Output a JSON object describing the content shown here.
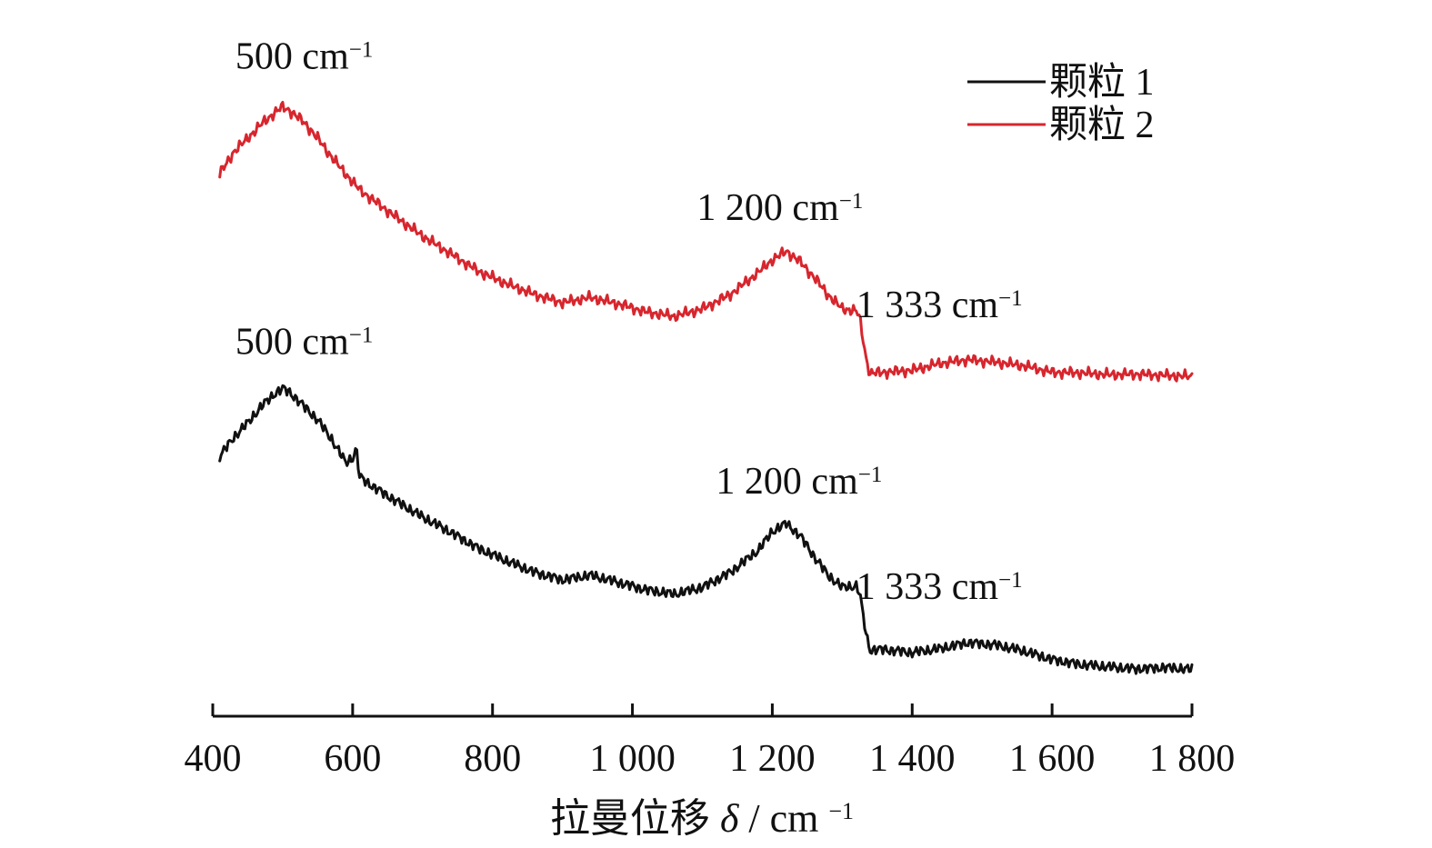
{
  "chart_data": {
    "type": "line",
    "xlabel_main": "拉曼位移",
    "xlabel_symbol": "δ",
    "xlabel_unit": " / cm",
    "xlabel_unit_exp": "−1",
    "xlim": [
      400,
      1800
    ],
    "x_ticks": [
      {
        "value": 400,
        "label": "400"
      },
      {
        "value": 600,
        "label": "600"
      },
      {
        "value": 800,
        "label": "800"
      },
      {
        "value": 1000,
        "label": "1 000"
      },
      {
        "value": 1200,
        "label": "1 200"
      },
      {
        "value": 1400,
        "label": "1 400"
      },
      {
        "value": 1600,
        "label": "1 600"
      },
      {
        "value": 1800,
        "label": "1 800"
      }
    ],
    "ylabel": "",
    "ylim": [
      0,
      100
    ],
    "grid": false,
    "legend": {
      "position": "top-right",
      "entries": [
        {
          "label": "颗粒 1",
          "color": "#111111"
        },
        {
          "label": "颗粒 2",
          "color": "#d7262e"
        }
      ]
    },
    "series": [
      {
        "name": "颗粒 1",
        "color": "#111111",
        "x": [
          410,
          430,
          450,
          470,
          490,
          500,
          510,
          530,
          550,
          570,
          590,
          600,
          605,
          610,
          630,
          660,
          700,
          740,
          780,
          820,
          860,
          900,
          940,
          980,
          1020,
          1060,
          1100,
          1140,
          1180,
          1200,
          1220,
          1240,
          1260,
          1280,
          1300,
          1320,
          1325,
          1330,
          1335,
          1340,
          1360,
          1400,
          1440,
          1480,
          1520,
          1560,
          1600,
          1640,
          1680,
          1720,
          1760,
          1800
        ],
        "values": [
          34.5,
          37.5,
          39.8,
          42.5,
          44.6,
          45.3,
          44.7,
          42.5,
          40.3,
          37.2,
          33.5,
          34.2,
          35.8,
          31.2,
          29.6,
          27.5,
          24.8,
          22.4,
          19.8,
          17.8,
          16.0,
          14.8,
          15.5,
          14.4,
          13.2,
          12.5,
          13.6,
          16.0,
          19.5,
          22.5,
          23.8,
          21.8,
          18.5,
          15.5,
          13.6,
          13.8,
          12.6,
          9.0,
          5.6,
          3.6,
          3.7,
          3.2,
          3.8,
          4.8,
          4.4,
          3.4,
          2.1,
          1.3,
          0.9,
          0.6,
          0.8,
          0.5
        ]
      },
      {
        "name": "颗粒 2",
        "color": "#d7262e",
        "x": [
          410,
          430,
          450,
          470,
          490,
          500,
          510,
          530,
          550,
          570,
          590,
          610,
          630,
          660,
          700,
          740,
          780,
          820,
          860,
          900,
          940,
          980,
          1020,
          1060,
          1100,
          1140,
          1180,
          1200,
          1220,
          1240,
          1260,
          1280,
          1300,
          1320,
          1325,
          1330,
          1335,
          1340,
          1360,
          1400,
          1440,
          1480,
          1520,
          1560,
          1600,
          1640,
          1680,
          1720,
          1760,
          1800
        ],
        "values": [
          79.5,
          83.0,
          85.2,
          87.5,
          89.4,
          90.2,
          89.6,
          87.8,
          85.2,
          82.2,
          79.5,
          77.0,
          75.3,
          72.8,
          69.6,
          66.8,
          64.0,
          62.0,
          60.3,
          59.0,
          59.8,
          58.8,
          57.5,
          56.8,
          58.0,
          60.3,
          63.8,
          65.8,
          67.2,
          65.5,
          63.0,
          60.2,
          58.0,
          57.7,
          56.5,
          53.0,
          49.5,
          47.7,
          47.9,
          48.2,
          49.3,
          49.9,
          49.5,
          48.9,
          47.9,
          47.8,
          47.5,
          47.6,
          47.4,
          47.2
        ]
      }
    ],
    "annotations": [
      {
        "text": "500 cm",
        "sup": "−1",
        "series": "颗粒 2",
        "x": 500
      },
      {
        "text": "1 200 cm",
        "sup": "−1",
        "series": "颗粒 2",
        "x": 1200
      },
      {
        "text": "1 333 cm",
        "sup": "−1",
        "series": "颗粒 2",
        "x": 1333
      },
      {
        "text": "500 cm",
        "sup": "−1",
        "series": "颗粒 1",
        "x": 500
      },
      {
        "text": "1 200 cm",
        "sup": "−1",
        "series": "颗粒 1",
        "x": 1200
      },
      {
        "text": "1 333 cm",
        "sup": "−1",
        "series": "颗粒 1",
        "x": 1333
      }
    ]
  }
}
